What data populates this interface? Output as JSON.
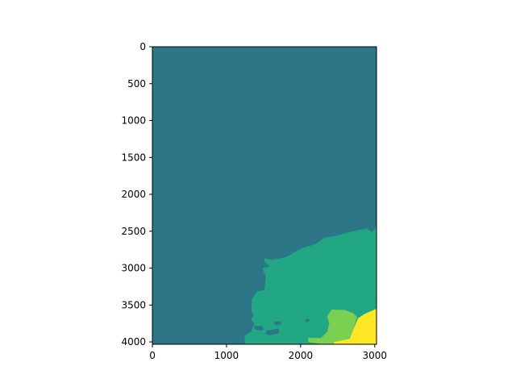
{
  "chart_data": {
    "type": "heatmap",
    "title": "",
    "xlabel": "",
    "ylabel": "",
    "xlim": [
      0,
      3024
    ],
    "ylim": [
      4032,
      0
    ],
    "x_ticks": [
      0,
      1000,
      2000,
      3000
    ],
    "y_ticks": [
      0,
      500,
      1000,
      1500,
      2000,
      2500,
      3000,
      3500,
      4000
    ],
    "x_tick_labels": [
      "0",
      "1000",
      "2000",
      "3000"
    ],
    "y_tick_labels": [
      "0",
      "500",
      "1000",
      "1500",
      "2000",
      "2500",
      "3000",
      "3500",
      "4000"
    ],
    "colormap": "viridis",
    "grid": false,
    "legend": "none",
    "regions": [
      {
        "name": "background",
        "color": "#2c7688",
        "points": [
          [
            0,
            0
          ],
          [
            3024,
            0
          ],
          [
            3024,
            4032
          ],
          [
            0,
            4032
          ]
        ]
      },
      {
        "name": "region-2",
        "color": "#22a785",
        "points": [
          [
            1247,
            4032
          ],
          [
            1247,
            3915
          ],
          [
            1336,
            3860
          ],
          [
            1374,
            3746
          ],
          [
            1330,
            3700
          ],
          [
            1365,
            3639
          ],
          [
            1336,
            3577
          ],
          [
            1342,
            3424
          ],
          [
            1409,
            3315
          ],
          [
            1513,
            3294
          ],
          [
            1531,
            3109
          ],
          [
            1485,
            3004
          ],
          [
            1586,
            2981
          ],
          [
            1520,
            2916
          ],
          [
            1507,
            2864
          ],
          [
            1595,
            2890
          ],
          [
            1797,
            2853
          ],
          [
            2006,
            2737
          ],
          [
            2207,
            2670
          ],
          [
            2321,
            2585
          ],
          [
            2467,
            2567
          ],
          [
            2707,
            2500
          ],
          [
            2896,
            2463
          ],
          [
            2960,
            2516
          ],
          [
            3024,
            2440
          ],
          [
            3024,
            4032
          ]
        ]
      },
      {
        "name": "region-3",
        "color": "#7ad151",
        "points": [
          [
            2104,
            3945
          ],
          [
            2274,
            3949
          ],
          [
            2361,
            3860
          ],
          [
            2388,
            3746
          ],
          [
            2357,
            3655
          ],
          [
            2418,
            3562
          ],
          [
            2590,
            3567
          ],
          [
            2711,
            3611
          ],
          [
            2762,
            3664
          ],
          [
            2707,
            3836
          ],
          [
            2642,
            4032
          ],
          [
            2284,
            4032
          ],
          [
            2104,
            4002
          ]
        ]
      },
      {
        "name": "region-4",
        "color": "#fde725",
        "points": [
          [
            2451,
            4032
          ],
          [
            2451,
            4002
          ],
          [
            2665,
            3958
          ],
          [
            2707,
            3836
          ],
          [
            2775,
            3680
          ],
          [
            2866,
            3620
          ],
          [
            3024,
            3550
          ],
          [
            3024,
            4032
          ]
        ]
      },
      {
        "name": "region-5",
        "color": "#2c7688",
        "points": [
          [
            1370,
            3784
          ],
          [
            1482,
            3784
          ],
          [
            1507,
            3838
          ],
          [
            1446,
            3845
          ],
          [
            1380,
            3830
          ]
        ]
      },
      {
        "name": "region-6",
        "color": "#2c7688",
        "points": [
          [
            1538,
            3851
          ],
          [
            1704,
            3818
          ],
          [
            1712,
            3880
          ],
          [
            1580,
            3911
          ],
          [
            1526,
            3890
          ]
        ]
      },
      {
        "name": "region-7",
        "color": "#2c7688",
        "points": [
          [
            1638,
            3737
          ],
          [
            1726,
            3716
          ],
          [
            1740,
            3760
          ],
          [
            1664,
            3776
          ]
        ]
      },
      {
        "name": "region-8",
        "color": "#2c7688",
        "points": [
          [
            2060,
            3700
          ],
          [
            2104,
            3682
          ],
          [
            2128,
            3715
          ],
          [
            2080,
            3733
          ]
        ]
      }
    ]
  }
}
